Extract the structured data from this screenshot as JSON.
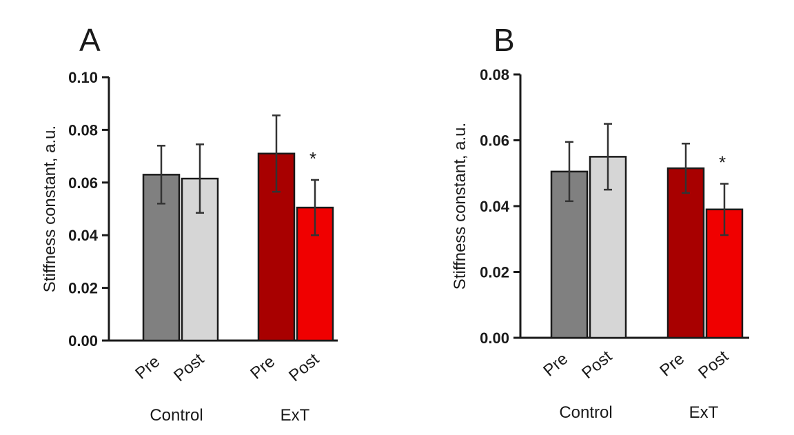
{
  "chart_data": [
    {
      "type": "bar",
      "panel": "A",
      "ylabel": "Stiffness constant, a.u.",
      "ylim": [
        0,
        0.1
      ],
      "yticks": [
        "0.00",
        "0.02",
        "0.04",
        "0.06",
        "0.08",
        "0.10"
      ],
      "groups": [
        "Control",
        "ExT"
      ],
      "categories": [
        "Pre",
        "Post",
        "Pre",
        "Post"
      ],
      "values": [
        0.063,
        0.0615,
        0.071,
        0.0505
      ],
      "errors": [
        0.011,
        0.013,
        0.0145,
        0.0105
      ],
      "colors": [
        "#808080",
        "#d6d6d6",
        "#a80000",
        "#f00000"
      ],
      "significance": [
        "",
        "",
        "",
        "*"
      ],
      "grid": false
    },
    {
      "type": "bar",
      "panel": "B",
      "ylabel": "Stiffness constant, a.u.",
      "ylim": [
        0,
        0.08
      ],
      "yticks": [
        "0.00",
        "0.02",
        "0.04",
        "0.06",
        "0.08"
      ],
      "groups": [
        "Control",
        "ExT"
      ],
      "categories": [
        "Pre",
        "Post",
        "Pre",
        "Post"
      ],
      "values": [
        0.0505,
        0.055,
        0.0515,
        0.039
      ],
      "errors": [
        0.009,
        0.01,
        0.0075,
        0.0078
      ],
      "colors": [
        "#808080",
        "#d6d6d6",
        "#a80000",
        "#f00000"
      ],
      "significance": [
        "",
        "",
        "",
        "*"
      ],
      "grid": false
    }
  ]
}
